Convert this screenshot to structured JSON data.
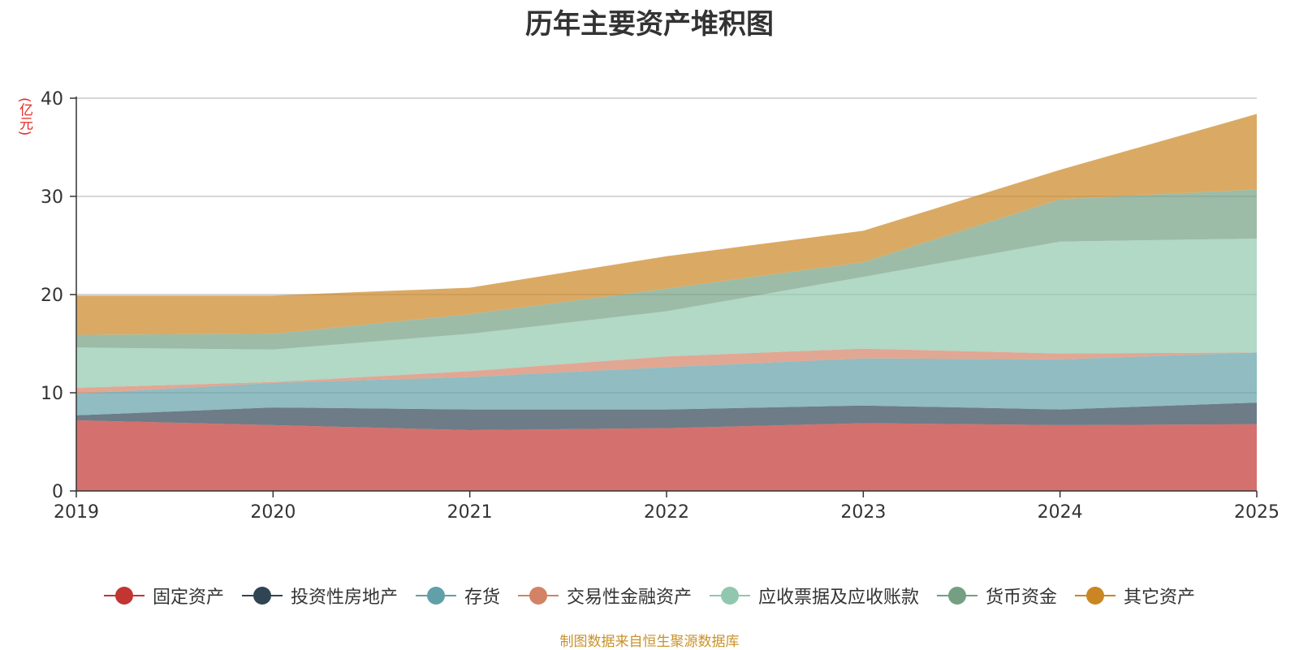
{
  "chart_data": {
    "type": "area",
    "stacked": true,
    "title": "历年主要资产堆积图",
    "ylabel": "(亿元)",
    "xlabel": "",
    "categories": [
      "2019",
      "2020",
      "2021",
      "2022",
      "2023",
      "2024",
      "2025"
    ],
    "ylim": [
      0,
      40
    ],
    "yticks": [
      0,
      10,
      20,
      30,
      40
    ],
    "grid": true,
    "legend_position": "bottom",
    "series": [
      {
        "name": "固定资产",
        "color": "#c23531",
        "values": [
          7.2,
          6.7,
          6.2,
          6.4,
          6.9,
          6.7,
          6.8
        ]
      },
      {
        "name": "投资性房地产",
        "color": "#2f4554",
        "values": [
          0.5,
          1.8,
          2.1,
          1.9,
          1.8,
          1.6,
          2.2
        ]
      },
      {
        "name": "存货",
        "color": "#61a0a8",
        "values": [
          2.2,
          2.5,
          3.3,
          4.3,
          4.8,
          5.1,
          5.1
        ]
      },
      {
        "name": "交易性金融资产",
        "color": "#d48265",
        "values": [
          0.6,
          0.1,
          0.6,
          1.1,
          1.0,
          0.6,
          0.0
        ]
      },
      {
        "name": "应收票据及应收账款",
        "color": "#91c7ae",
        "values": [
          4.1,
          3.3,
          3.8,
          4.6,
          7.3,
          11.4,
          11.6
        ]
      },
      {
        "name": "货币资金",
        "color": "#749f83",
        "values": [
          1.3,
          1.6,
          2.0,
          2.3,
          1.5,
          4.3,
          5.0
        ]
      },
      {
        "name": "其它资产",
        "color": "#ca8622",
        "values": [
          4.0,
          3.9,
          2.7,
          3.3,
          3.2,
          3.0,
          7.7
        ]
      }
    ]
  },
  "footer_note": "制图数据来自恒生聚源数据库"
}
